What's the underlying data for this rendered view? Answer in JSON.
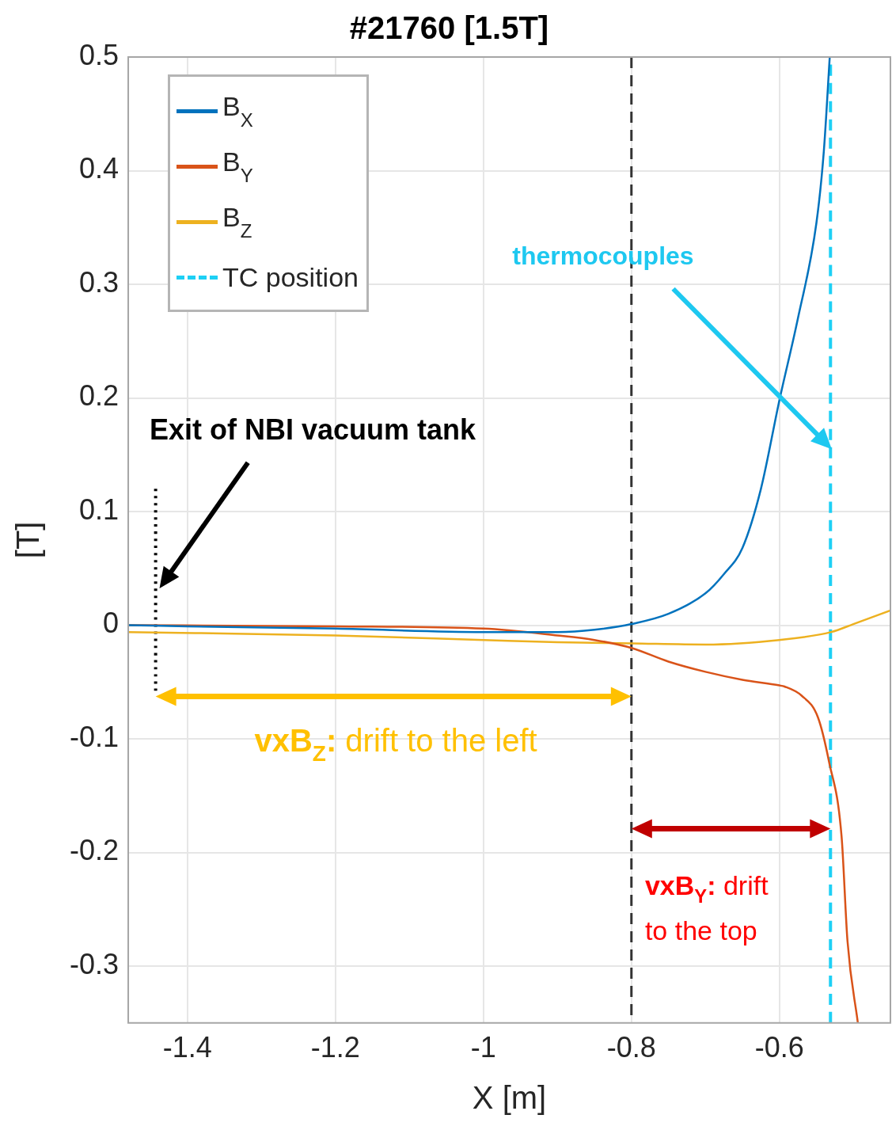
{
  "chart_data": {
    "type": "line",
    "title": "#21760 [1.5T]",
    "xlabel": "X [m]",
    "ylabel": "[T]",
    "xlim": [
      -1.48,
      -0.45
    ],
    "xticks": [
      -1.4,
      -1.2,
      -1,
      -0.8,
      -0.6
    ],
    "ylim": [
      -0.35,
      0.5
    ],
    "yticks": [
      -0.3,
      -0.2,
      -0.1,
      0,
      0.1,
      0.2,
      0.3,
      0.4,
      0.5
    ],
    "grid": true,
    "legend": "top left",
    "series": [
      {
        "name": "B$_{X}$",
        "color": "#0072bd",
        "x": [
          -1.48,
          -1.4,
          -1.2,
          -1.0,
          -0.9,
          -0.85,
          -0.8,
          -0.75,
          -0.7,
          -0.675,
          -0.65,
          -0.625,
          -0.6,
          -0.575,
          -0.55,
          -0.54,
          -0.532
        ],
        "values": [
          0,
          -0.001,
          -0.003,
          -0.006,
          -0.006,
          -0.004,
          0.001,
          0.01,
          0.028,
          0.045,
          0.068,
          0.12,
          0.198,
          0.27,
          0.354,
          0.417,
          0.5
        ]
      },
      {
        "name": "B$_{Y}$",
        "color": "#d95319",
        "x": [
          -1.48,
          -1.2,
          -1.0,
          -0.9,
          -0.85,
          -0.8,
          -0.75,
          -0.7,
          -0.65,
          -0.6,
          -0.593,
          -0.57,
          -0.548,
          -0.533,
          -0.516,
          -0.508,
          -0.494
        ],
        "values": [
          0,
          -0.001,
          -0.003,
          -0.009,
          -0.013,
          -0.02,
          -0.032,
          -0.041,
          -0.048,
          -0.053,
          -0.054,
          -0.062,
          -0.081,
          -0.12,
          -0.186,
          -0.278,
          -0.35
        ]
      },
      {
        "name": "B$_{Z}$",
        "color": "#edb120",
        "x": [
          -1.48,
          -1.2,
          -1.0,
          -0.9,
          -0.8,
          -0.7,
          -0.6,
          -0.53,
          -0.5,
          -0.45
        ],
        "values": [
          -0.006,
          -0.009,
          -0.013,
          -0.015,
          -0.016,
          -0.017,
          -0.013,
          -0.006,
          0.001,
          0.013
        ]
      },
      {
        "name": "TC position",
        "color": "#1ed0f5",
        "line_style": "dashed",
        "x": [
          -0.531,
          -0.531
        ],
        "values": [
          -0.35,
          0.5
        ]
      },
      {
        "color": "#000000",
        "line_style": "dotted",
        "x": [
          -1.443,
          -1.443
        ],
        "values": [
          0.12,
          -0.062
        ]
      }
    ],
    "ref_lines": [
      {
        "axis": "x",
        "value": -0.8,
        "color": "#333333",
        "line_style": "dashed"
      }
    ],
    "annotations": [
      "Exit of NBI vacuum tank",
      "thermocouples",
      "vxB$_{Z}$: drift to the left",
      "vxB$_{Y}$: drift to the top"
    ]
  }
}
